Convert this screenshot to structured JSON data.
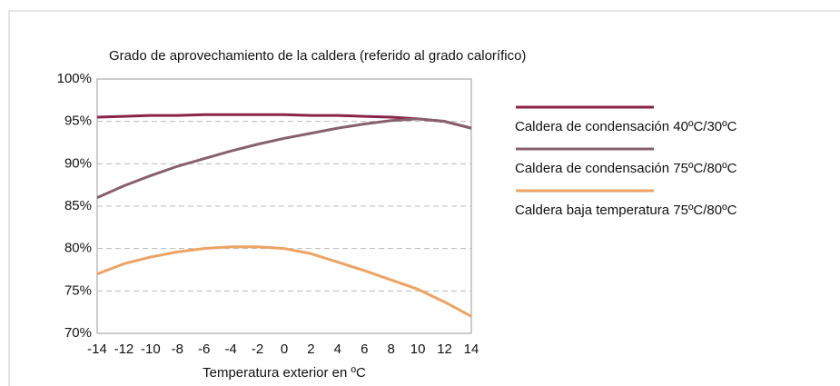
{
  "chart_data": {
    "type": "line",
    "title": "Grado de aprovechamiento de la caldera (referido al grado calorífico)",
    "x_label": "Temperatura exterior en ºC",
    "x": [
      -14,
      -12,
      -10,
      -8,
      -6,
      -4,
      -2,
      0,
      2,
      4,
      6,
      8,
      10,
      12,
      14
    ],
    "series": [
      {
        "name": "Caldera de condensación 40ºC/30ºC",
        "color": "#8b2346",
        "values": [
          95.5,
          95.6,
          95.7,
          95.7,
          95.8,
          95.8,
          95.8,
          95.8,
          95.7,
          95.7,
          95.6,
          95.5,
          95.3,
          95.0,
          94.2
        ]
      },
      {
        "name": "Caldera de condensación 75ºC/80ºC",
        "color": "#87606f",
        "values": [
          86.0,
          87.4,
          88.6,
          89.7,
          90.6,
          91.5,
          92.3,
          93.0,
          93.6,
          94.2,
          94.7,
          95.1,
          95.3,
          95.0,
          94.2
        ]
      },
      {
        "name": "Caldera baja temperatura 75ºC/80ºC",
        "color": "#eba466",
        "values": [
          77.0,
          78.2,
          79.0,
          79.6,
          80.0,
          80.2,
          80.2,
          80.0,
          79.4,
          78.4,
          77.4,
          76.3,
          75.2,
          73.7,
          72.0
        ]
      }
    ],
    "xlim": [
      -14,
      14
    ],
    "xticks": [
      -14,
      -12,
      -10,
      -8,
      -6,
      -4,
      -2,
      0,
      2,
      4,
      6,
      8,
      10,
      12,
      14
    ],
    "ylim": [
      70,
      100
    ],
    "yticks": [
      {
        "value": 70,
        "label": "70%"
      },
      {
        "value": 75,
        "label": "75%"
      },
      {
        "value": 80,
        "label": "80%"
      },
      {
        "value": 85,
        "label": "85%"
      },
      {
        "value": 90,
        "label": "90%"
      },
      {
        "value": 95,
        "label": "95%"
      },
      {
        "value": 100,
        "label": "100%"
      }
    ],
    "grid": true,
    "legend": "right"
  }
}
